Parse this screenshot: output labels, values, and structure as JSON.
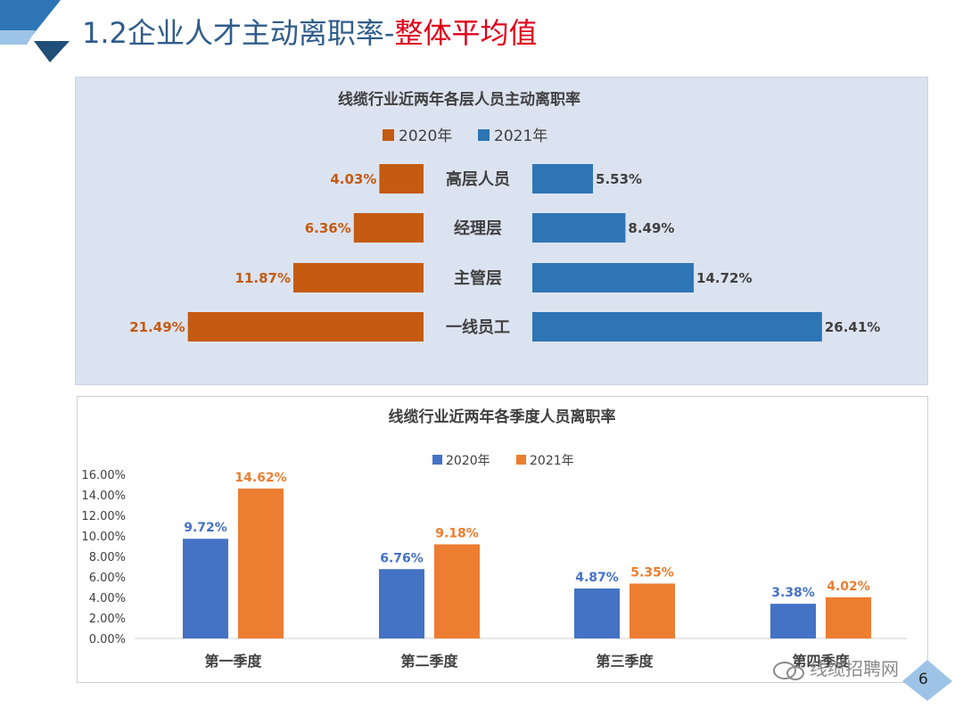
{
  "slide": {
    "title_prefix": "1.2企业人才主动离职率-",
    "title_highlight": "整体平均值",
    "page_number": "6",
    "watermark": "线缆招聘网",
    "colors": {
      "accent_blue": "#2f5c8a",
      "title_red": "#e0001b"
    }
  },
  "chart_data": [
    {
      "type": "bar",
      "orientation": "horizontal-butterfly",
      "title": "线缆行业近两年各层人员主动离职率",
      "categories": [
        "高层人员",
        "经理层",
        "主管层",
        "一线员工"
      ],
      "series": [
        {
          "name": "2020年",
          "color": "#c55a11",
          "values": [
            4.03,
            6.36,
            11.87,
            21.49
          ],
          "labels": [
            "4.03%",
            "6.36%",
            "11.87%",
            "21.49%"
          ]
        },
        {
          "name": "2021年",
          "color": "#2e75b6",
          "values": [
            5.53,
            8.49,
            14.72,
            26.41
          ],
          "labels": [
            "5.53%",
            "8.49%",
            "14.72%",
            "26.41%"
          ]
        }
      ],
      "legend": "top-center",
      "grid": false
    },
    {
      "type": "bar",
      "title": "线缆行业近两年各季度人员离职率",
      "categories": [
        "第一季度",
        "第二季度",
        "第三季度",
        "第四季度"
      ],
      "series": [
        {
          "name": "2020年",
          "color": "#4472c4",
          "values": [
            9.72,
            6.76,
            4.87,
            3.38
          ],
          "labels": [
            "9.72%",
            "6.76%",
            "4.87%",
            "3.38%"
          ]
        },
        {
          "name": "2021年",
          "color": "#ed7d31",
          "values": [
            14.62,
            9.18,
            5.35,
            4.02
          ],
          "labels": [
            "14.62%",
            "9.18%",
            "5.35%",
            "4.02%"
          ]
        }
      ],
      "ylim": [
        0,
        16
      ],
      "yticks": [
        "16.00%",
        "14.00%",
        "12.00%",
        "10.00%",
        "8.00%",
        "6.00%",
        "4.00%",
        "2.00%",
        "0.00%"
      ],
      "legend": "top-center",
      "grid": false,
      "xlabel": "",
      "ylabel": ""
    }
  ]
}
